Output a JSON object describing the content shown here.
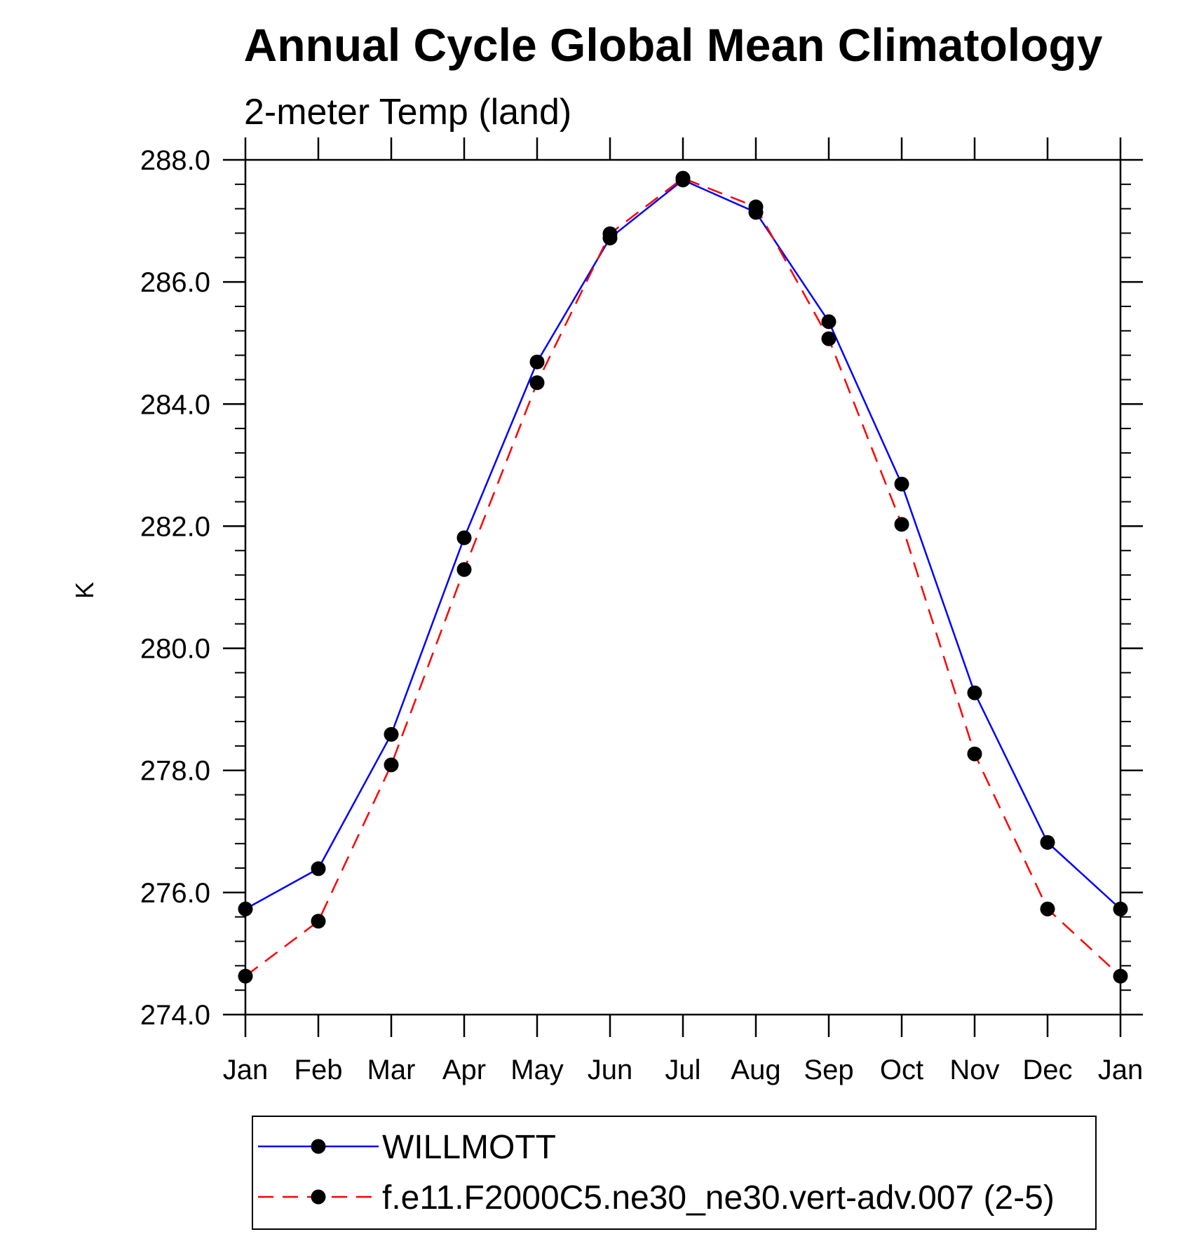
{
  "chart_data": {
    "type": "line",
    "title": "Annual Cycle Global Mean Climatology",
    "subtitle": "2-meter Temp (land)",
    "xlabel": "",
    "ylabel": "K",
    "ylim": [
      274.0,
      288.0
    ],
    "yticks": [
      "274.0",
      "276.0",
      "278.0",
      "280.0",
      "282.0",
      "284.0",
      "286.0",
      "288.0"
    ],
    "yticks_values": [
      274,
      276,
      278,
      280,
      282,
      284,
      286,
      288
    ],
    "categories": [
      "Jan",
      "Feb",
      "Mar",
      "Apr",
      "May",
      "Jun",
      "Jul",
      "Aug",
      "Sep",
      "Oct",
      "Nov",
      "Dec",
      "Jan"
    ],
    "series": [
      {
        "name": "WILLMOTT",
        "color": "#0000ff",
        "dash": "solid",
        "values": [
          275.73,
          276.39,
          278.59,
          281.81,
          284.69,
          286.72,
          287.67,
          287.14,
          285.35,
          282.69,
          279.27,
          276.82,
          275.73
        ]
      },
      {
        "name": "f.e11.F2000C5.ne30_ne30.vert-adv.007 (2-5)",
        "color": "#ff0000",
        "dash": "dashed",
        "values": [
          274.63,
          275.53,
          278.09,
          281.29,
          284.35,
          286.79,
          287.7,
          287.23,
          285.07,
          282.03,
          278.27,
          275.73,
          274.63
        ]
      }
    ],
    "legend": "bottom",
    "grid": false
  }
}
